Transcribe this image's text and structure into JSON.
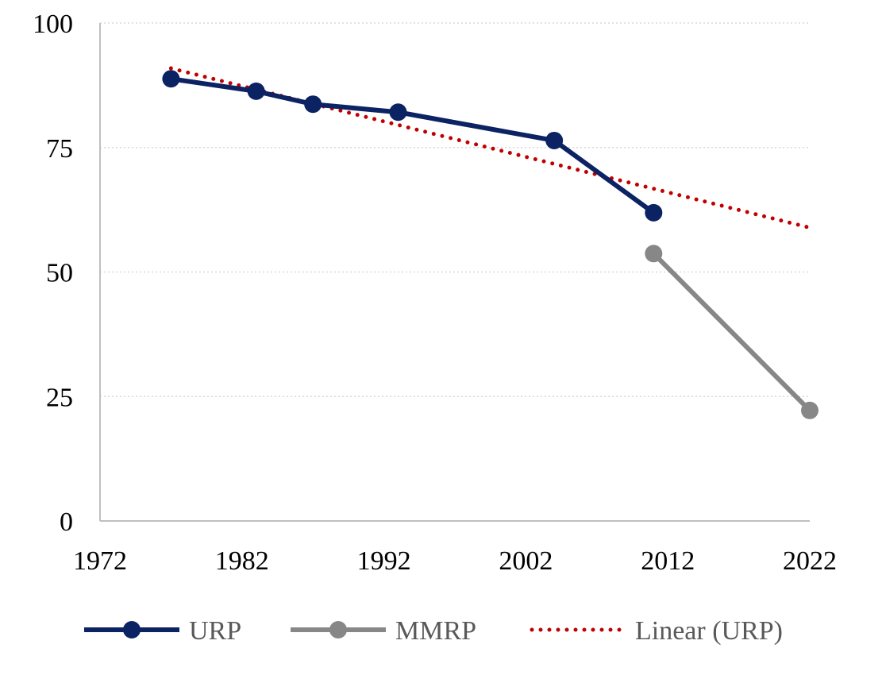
{
  "chart_data": {
    "type": "line",
    "title": "",
    "xlabel": "",
    "ylabel": "",
    "xlim": [
      1972,
      2022
    ],
    "ylim": [
      0,
      100
    ],
    "x_ticks": [
      "1972",
      "1982",
      "1992",
      "2002",
      "2012",
      "2022"
    ],
    "y_ticks": [
      "0",
      "25",
      "50",
      "75",
      "100"
    ],
    "grid": "horizontal dotted",
    "legend_position": "bottom",
    "series": [
      {
        "name": "URP",
        "color": "#0b2263",
        "style": "solid-markers",
        "x": [
          1977,
          1983,
          1987,
          1993,
          2004,
          2011
        ],
        "y": [
          88.8,
          86.3,
          83.7,
          82.1,
          76.4,
          61.9
        ]
      },
      {
        "name": "MMRP",
        "color": "#878787",
        "style": "solid-markers",
        "x": [
          2011,
          2022
        ],
        "y": [
          53.7,
          22.2
        ]
      },
      {
        "name": "Linear (URP)",
        "color": "#c00000",
        "style": "dotted",
        "x": [
          1977,
          2022
        ],
        "y": [
          90.9,
          58.9
        ]
      }
    ]
  }
}
